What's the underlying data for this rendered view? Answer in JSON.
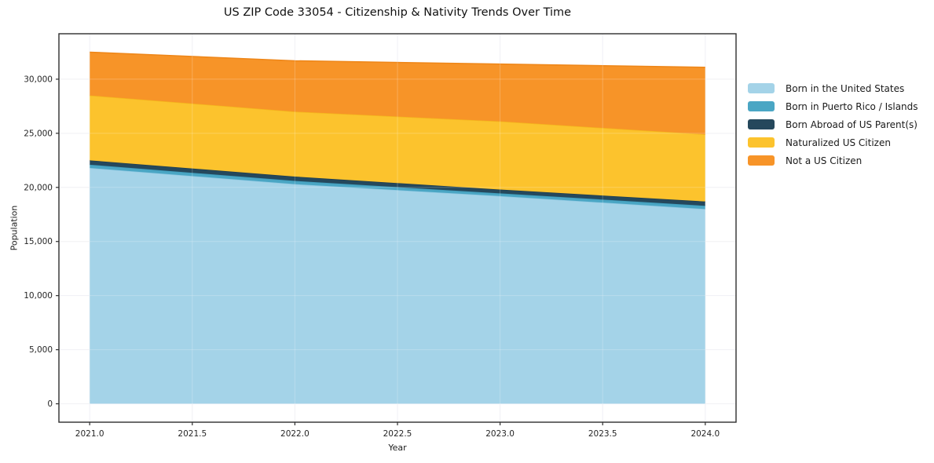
{
  "page": {
    "background": "#ffffff"
  },
  "chart_data": {
    "type": "area",
    "stacked": true,
    "title": "US ZIP Code 33054 - Citizenship & Nativity Trends Over Time",
    "xlabel": "Year",
    "ylabel": "Population",
    "x": [
      2021,
      2022,
      2023,
      2024
    ],
    "series": [
      {
        "name": "Born in the United States",
        "color": "#a4d3e8",
        "line": "#8fc8e2",
        "values": [
          21800,
          20300,
          19200,
          18000
        ]
      },
      {
        "name": "Born in Puerto Rico / Islands",
        "color": "#4aa6c4",
        "line": "#3e9bba",
        "values": [
          300,
          300,
          250,
          300
        ]
      },
      {
        "name": "Born Abroad of US Parent(s)",
        "color": "#25485c",
        "line": "#1f3e50",
        "values": [
          400,
          400,
          350,
          400
        ]
      },
      {
        "name": "Naturalized US Citizen",
        "color": "#fcc32d",
        "line": "#f4b71c",
        "values": [
          6000,
          6000,
          6300,
          6200
        ]
      },
      {
        "name": "Not a US Citizen",
        "color": "#f79428",
        "line": "#ee8618",
        "values": [
          4000,
          4700,
          5300,
          6200
        ]
      }
    ],
    "totals": [
      32500,
      31700,
      31400,
      31100
    ],
    "xlim": [
      2020.85,
      2024.15
    ],
    "ylim": [
      -1700,
      34200
    ],
    "x_ticks": [
      2021.0,
      2021.5,
      2022.0,
      2022.5,
      2023.0,
      2023.5,
      2024.0
    ],
    "x_tick_labels": [
      "2021.0",
      "2021.5",
      "2022.0",
      "2022.5",
      "2023.0",
      "2023.5",
      "2024.0"
    ],
    "y_ticks": [
      0,
      5000,
      10000,
      15000,
      20000,
      25000,
      30000
    ],
    "y_tick_labels": [
      "0",
      "5,000",
      "10,000",
      "15,000",
      "20,000",
      "25,000",
      "30,000"
    ],
    "grid": true,
    "legend_position": "right-outside",
    "colors": {
      "spine": "#2e2e2e",
      "gridline": "#ededf2",
      "tick_text": "#262626"
    }
  }
}
